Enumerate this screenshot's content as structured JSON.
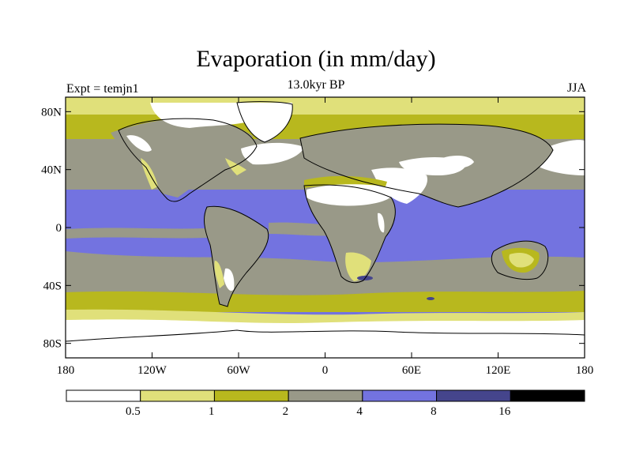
{
  "title": "Evaporation (in mm/day)",
  "subtitle": "13.0kyr BP",
  "left_label": "Expt = temjn1",
  "right_label": "JJA",
  "map": {
    "lat_ticks": [
      "80N",
      "40N",
      "0",
      "40S",
      "80S"
    ],
    "lon_ticks": [
      "180",
      "120W",
      "60W",
      "0",
      "60E",
      "120E",
      "180"
    ]
  },
  "colorbar": {
    "bins": [
      {
        "range": "< 0.5",
        "color": "#ffffff"
      },
      {
        "range": "0.5 - 1",
        "color": "#e0e07a"
      },
      {
        "range": "1 - 2",
        "color": "#b8b81e"
      },
      {
        "range": "2 - 4",
        "color": "#999988"
      },
      {
        "range": "4 - 8",
        "color": "#7373e0"
      },
      {
        "range": "8 - 16",
        "color": "#45458c"
      },
      {
        "range": "> 16",
        "color": "#000000"
      }
    ],
    "labels": [
      "0.5",
      "1",
      "2",
      "4",
      "8",
      "16"
    ]
  }
}
